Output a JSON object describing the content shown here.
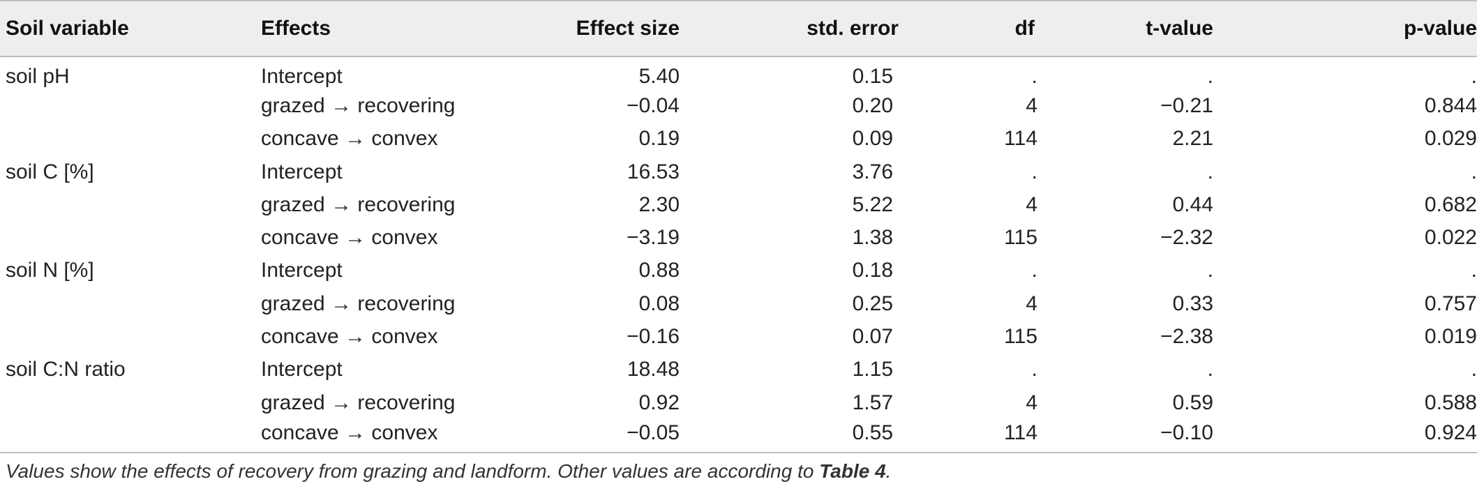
{
  "table": {
    "headers": {
      "soil_variable": "Soil variable",
      "effects": "Effects",
      "effect_size": "Effect size",
      "std_error": "std. error",
      "df": "df",
      "t_value": "t-value",
      "p_value": "p-value"
    },
    "rows": [
      {
        "variable": "soil pH",
        "effect": "Intercept",
        "effect_size": "5.40",
        "std_error": "0.15",
        "df": ".",
        "t_value": ".",
        "p_value": "."
      },
      {
        "variable": "",
        "effect": "grazed → recovering",
        "effect_size": "−0.04",
        "std_error": "0.20",
        "df": "4",
        "t_value": "−0.21",
        "p_value": "0.844"
      },
      {
        "variable": "",
        "effect": "concave → convex",
        "effect_size": "0.19",
        "std_error": "0.09",
        "df": "114",
        "t_value": "2.21",
        "p_value": "0.029"
      },
      {
        "variable": "soil C [%]",
        "effect": "Intercept",
        "effect_size": "16.53",
        "std_error": "3.76",
        "df": ".",
        "t_value": ".",
        "p_value": "."
      },
      {
        "variable": "",
        "effect": "grazed → recovering",
        "effect_size": "2.30",
        "std_error": "5.22",
        "df": "4",
        "t_value": "0.44",
        "p_value": "0.682"
      },
      {
        "variable": "",
        "effect": "concave → convex",
        "effect_size": "−3.19",
        "std_error": "1.38",
        "df": "115",
        "t_value": "−2.32",
        "p_value": "0.022"
      },
      {
        "variable": "soil N [%]",
        "effect": "Intercept",
        "effect_size": "0.88",
        "std_error": "0.18",
        "df": ".",
        "t_value": ".",
        "p_value": "."
      },
      {
        "variable": "",
        "effect": "grazed → recovering",
        "effect_size": "0.08",
        "std_error": "0.25",
        "df": "4",
        "t_value": "0.33",
        "p_value": "0.757"
      },
      {
        "variable": "",
        "effect": "concave → convex",
        "effect_size": "−0.16",
        "std_error": "0.07",
        "df": "115",
        "t_value": "−2.38",
        "p_value": "0.019"
      },
      {
        "variable": "soil C:N ratio",
        "effect": "Intercept",
        "effect_size": "18.48",
        "std_error": "1.15",
        "df": ".",
        "t_value": ".",
        "p_value": "."
      },
      {
        "variable": "",
        "effect": "grazed → recovering",
        "effect_size": "0.92",
        "std_error": "1.57",
        "df": "4",
        "t_value": "0.59",
        "p_value": "0.588"
      },
      {
        "variable": "",
        "effect": "concave → convex",
        "effect_size": "−0.05",
        "std_error": "0.55",
        "df": "114",
        "t_value": "−0.10",
        "p_value": "0.924"
      }
    ]
  },
  "footnote": {
    "text": "Values show the effects of recovery from grazing and landform. Other values are according to ",
    "ref": "Table 4",
    "end": "."
  }
}
